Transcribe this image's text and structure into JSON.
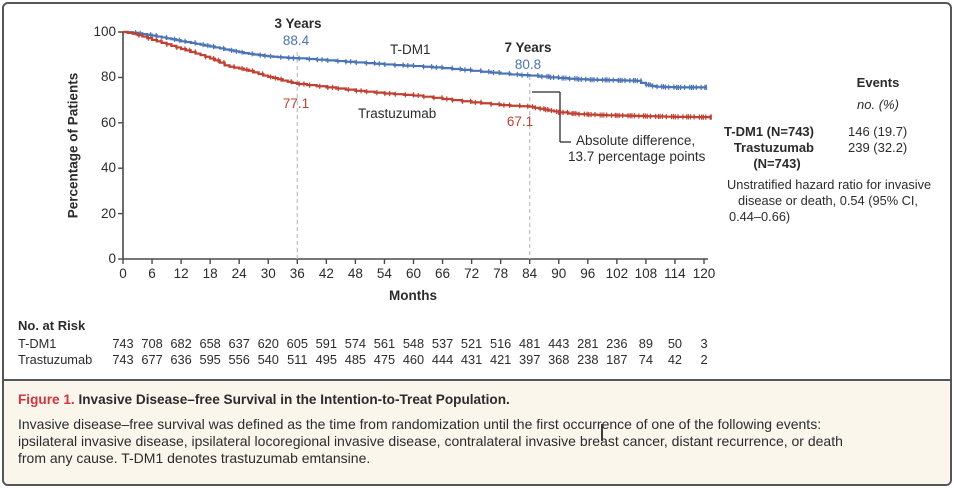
{
  "figure": {
    "label": "Figure 1.",
    "title": "Invasive Disease–free Survival in the Intention-to-Treat Population.",
    "caption_lines": [
      "Invasive disease–free survival was defined as the time from randomization until the first occurrence of one of the following events:",
      "ipsilateral invasive disease, ipsilateral locoregional invasive disease, contralateral invasive breast cancer, distant recurrence, or death",
      "from any cause. T-DM1 denotes trastuzumab emtansine."
    ]
  },
  "chart_data": {
    "type": "line",
    "subtype": "kaplan-meier-step",
    "title": "",
    "xlabel": "Months",
    "ylabel": "Percentage of Patients",
    "xlim": [
      0,
      120
    ],
    "ylim": [
      0,
      100
    ],
    "x_ticks": [
      0,
      6,
      12,
      18,
      24,
      30,
      36,
      42,
      48,
      54,
      60,
      66,
      72,
      78,
      84,
      90,
      96,
      102,
      108,
      114,
      120
    ],
    "y_ticks": [
      0,
      20,
      40,
      60,
      80,
      100
    ],
    "grid": false,
    "colors": {
      "tdm1": "#4a74b5",
      "trastuzumab": "#bf4132",
      "dashed_ref": "#c4c4c4",
      "axis": "#4a4a4a"
    },
    "series": [
      {
        "name": "T-DM1",
        "color": "#4a74b5",
        "points": [
          [
            0,
            100
          ],
          [
            1,
            99.9
          ],
          [
            2,
            99.7
          ],
          [
            3,
            99.4
          ],
          [
            4,
            99.1
          ],
          [
            5,
            98.8
          ],
          [
            6,
            98.4
          ],
          [
            7,
            98.0
          ],
          [
            8,
            97.6
          ],
          [
            9,
            97.2
          ],
          [
            10,
            96.8
          ],
          [
            11,
            96.4
          ],
          [
            12,
            95.9
          ],
          [
            13,
            95.6
          ],
          [
            14,
            95.2
          ],
          [
            15,
            94.8
          ],
          [
            16,
            94.4
          ],
          [
            17,
            94.0
          ],
          [
            18,
            93.6
          ],
          [
            19,
            93.2
          ],
          [
            20,
            92.8
          ],
          [
            21,
            92.3
          ],
          [
            22,
            91.9
          ],
          [
            23,
            91.5
          ],
          [
            24,
            91.1
          ],
          [
            25,
            90.7
          ],
          [
            26,
            90.4
          ],
          [
            27,
            90.1
          ],
          [
            28,
            89.8
          ],
          [
            29,
            89.5
          ],
          [
            30,
            89.3
          ],
          [
            31,
            89.1
          ],
          [
            32,
            88.9
          ],
          [
            33,
            88.8
          ],
          [
            34,
            88.6
          ],
          [
            35,
            88.5
          ],
          [
            36,
            88.4
          ],
          [
            38,
            88.1
          ],
          [
            40,
            87.8
          ],
          [
            42,
            87.5
          ],
          [
            44,
            87.2
          ],
          [
            46,
            86.9
          ],
          [
            48,
            86.6
          ],
          [
            50,
            86.3
          ],
          [
            52,
            86.0
          ],
          [
            54,
            85.7
          ],
          [
            56,
            85.4
          ],
          [
            58,
            85.2
          ],
          [
            60,
            85.0
          ],
          [
            62,
            84.7
          ],
          [
            64,
            84.4
          ],
          [
            66,
            84.1
          ],
          [
            68,
            83.7
          ],
          [
            70,
            83.3
          ],
          [
            72,
            82.9
          ],
          [
            74,
            82.5
          ],
          [
            76,
            82.1
          ],
          [
            78,
            81.7
          ],
          [
            80,
            81.3
          ],
          [
            82,
            81.0
          ],
          [
            84,
            80.8
          ],
          [
            86,
            80.4
          ],
          [
            88,
            80.0
          ],
          [
            90,
            79.7
          ],
          [
            92,
            79.4
          ],
          [
            94,
            79.2
          ],
          [
            96,
            79.0
          ],
          [
            98,
            78.9
          ],
          [
            100,
            78.8
          ],
          [
            102,
            78.7
          ],
          [
            104,
            78.6
          ],
          [
            106,
            78.5
          ],
          [
            107,
            77.6
          ],
          [
            108,
            76.8
          ],
          [
            109,
            76.2
          ],
          [
            110,
            75.9
          ],
          [
            112,
            75.7
          ],
          [
            114,
            75.6
          ],
          [
            116,
            75.6
          ],
          [
            118,
            75.6
          ],
          [
            120.5,
            75.6
          ]
        ]
      },
      {
        "name": "Trastuzumab",
        "color": "#bf4132",
        "points": [
          [
            0,
            100
          ],
          [
            1,
            99.6
          ],
          [
            2,
            99.2
          ],
          [
            3,
            98.6
          ],
          [
            4,
            98.0
          ],
          [
            5,
            97.3
          ],
          [
            6,
            96.5
          ],
          [
            7,
            95.9
          ],
          [
            8,
            95.2
          ],
          [
            9,
            94.6
          ],
          [
            10,
            93.9
          ],
          [
            11,
            93.2
          ],
          [
            12,
            92.5
          ],
          [
            13,
            91.9
          ],
          [
            14,
            91.2
          ],
          [
            15,
            90.5
          ],
          [
            16,
            89.8
          ],
          [
            17,
            89.1
          ],
          [
            18,
            88.3
          ],
          [
            19,
            87.5
          ],
          [
            20,
            86.5
          ],
          [
            21,
            85.3
          ],
          [
            22,
            84.7
          ],
          [
            23,
            84.3
          ],
          [
            24,
            83.9
          ],
          [
            25,
            83.4
          ],
          [
            26,
            82.9
          ],
          [
            27,
            82.2
          ],
          [
            28,
            81.5
          ],
          [
            29,
            80.8
          ],
          [
            30,
            80.2
          ],
          [
            31,
            79.7
          ],
          [
            32,
            79.2
          ],
          [
            33,
            78.6
          ],
          [
            34,
            78.1
          ],
          [
            35,
            77.6
          ],
          [
            36,
            77.1
          ],
          [
            38,
            76.6
          ],
          [
            40,
            76.1
          ],
          [
            42,
            75.6
          ],
          [
            44,
            75.1
          ],
          [
            46,
            74.6
          ],
          [
            48,
            74.1
          ],
          [
            50,
            73.7
          ],
          [
            52,
            73.3
          ],
          [
            54,
            72.9
          ],
          [
            56,
            72.6
          ],
          [
            58,
            72.3
          ],
          [
            60,
            72.0
          ],
          [
            62,
            71.5
          ],
          [
            64,
            71.0
          ],
          [
            66,
            70.5
          ],
          [
            68,
            70.0
          ],
          [
            70,
            69.5
          ],
          [
            72,
            69.0
          ],
          [
            74,
            68.6
          ],
          [
            76,
            68.2
          ],
          [
            78,
            67.8
          ],
          [
            80,
            67.5
          ],
          [
            82,
            67.3
          ],
          [
            84,
            67.1
          ],
          [
            85,
            66.6
          ],
          [
            86,
            66.2
          ],
          [
            87,
            65.8
          ],
          [
            88,
            65.4
          ],
          [
            89,
            65.0
          ],
          [
            90,
            64.6
          ],
          [
            92,
            64.1
          ],
          [
            94,
            63.8
          ],
          [
            96,
            63.6
          ],
          [
            98,
            63.4
          ],
          [
            100,
            63.3
          ],
          [
            102,
            63.2
          ],
          [
            104,
            63.1
          ],
          [
            106,
            63.0
          ],
          [
            108,
            62.9
          ],
          [
            110,
            62.8
          ],
          [
            112,
            62.7
          ],
          [
            114,
            62.6
          ],
          [
            116,
            62.6
          ],
          [
            118,
            62.5
          ],
          [
            121.5,
            62.5
          ]
        ]
      }
    ],
    "annotations": {
      "three_years": {
        "label": "3 Years",
        "month": 36,
        "tdm1_value": "88.4",
        "trastuzumab_value": "77.1"
      },
      "seven_years": {
        "label": "7 Years",
        "month": 84,
        "tdm1_value": "80.8",
        "trastuzumab_value": "67.1"
      },
      "curve_labels": {
        "tdm1": "T-DM1",
        "trastuzumab": "Trastuzumab"
      },
      "difference_line1": "Absolute difference,",
      "difference_line2": "13.7 percentage points"
    }
  },
  "events_panel": {
    "header": "Events",
    "subheader": "no. (%)",
    "rows": [
      {
        "label": "T-DM1 (N=743)",
        "value": "146 (19.7)"
      },
      {
        "label": "Trastuzumab",
        "label2": "(N=743)",
        "value": "239 (32.2)"
      }
    ],
    "hazard_note_lines": [
      "Unstratified hazard ratio for invasive",
      "disease or death, 0.54 (95% CI,",
      "0.44–0.66)"
    ]
  },
  "risk_table": {
    "header": "No. at Risk",
    "rows": [
      {
        "label": "T-DM1",
        "values": [
          743,
          708,
          682,
          658,
          637,
          620,
          605,
          591,
          574,
          561,
          548,
          537,
          521,
          516,
          481,
          443,
          281,
          236,
          89,
          50,
          3
        ]
      },
      {
        "label": "Trastuzumab",
        "values": [
          743,
          677,
          636,
          595,
          556,
          540,
          511,
          495,
          485,
          475,
          460,
          444,
          431,
          421,
          397,
          368,
          238,
          187,
          74,
          42,
          2
        ]
      }
    ]
  }
}
